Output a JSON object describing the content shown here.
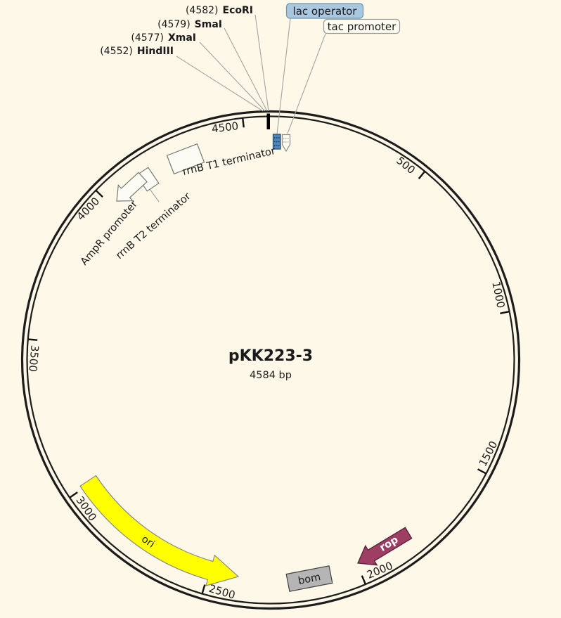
{
  "plasmid": {
    "name": "pKK223-3",
    "size_label": "4584 bp",
    "length_bp": 4584,
    "ticks": [
      {
        "bp": 500,
        "label": "500"
      },
      {
        "bp": 1000,
        "label": "1000"
      },
      {
        "bp": 1500,
        "label": "1500"
      },
      {
        "bp": 2000,
        "label": "2000"
      },
      {
        "bp": 2500,
        "label": "2500"
      },
      {
        "bp": 3000,
        "label": "3000"
      },
      {
        "bp": 3500,
        "label": "3500"
      },
      {
        "bp": 4000,
        "label": "4000"
      },
      {
        "bp": 4500,
        "label": "4500"
      }
    ],
    "restriction_sites": [
      {
        "position_label": "(4582)",
        "name": "EcoRI"
      },
      {
        "position_label": "(4579)",
        "name": "SmaI"
      },
      {
        "position_label": "(4577)",
        "name": "XmaI"
      },
      {
        "position_label": "(4552)",
        "name": "HindIII"
      }
    ],
    "features": {
      "lac_operator": {
        "label": "lac operator"
      },
      "tac_promoter": {
        "label": "tac promoter"
      },
      "rrnb_t1": {
        "label": "rrnB T1 terminator"
      },
      "rrnb_t2": {
        "label": "rrnB T2 terminator"
      },
      "ampr_promoter": {
        "label": "AmpR promoter"
      },
      "ori": {
        "label": "ori"
      },
      "bom": {
        "label": "bom"
      },
      "rop": {
        "label": "rop"
      }
    },
    "colors": {
      "background": "#fdf8e7",
      "ori": "#ffff00",
      "rop": "#9e3e62",
      "bom": "#b5b5b5",
      "lac_operator_feature": "#4d86ba",
      "lac_label_highlight": "#a9c7de"
    }
  }
}
